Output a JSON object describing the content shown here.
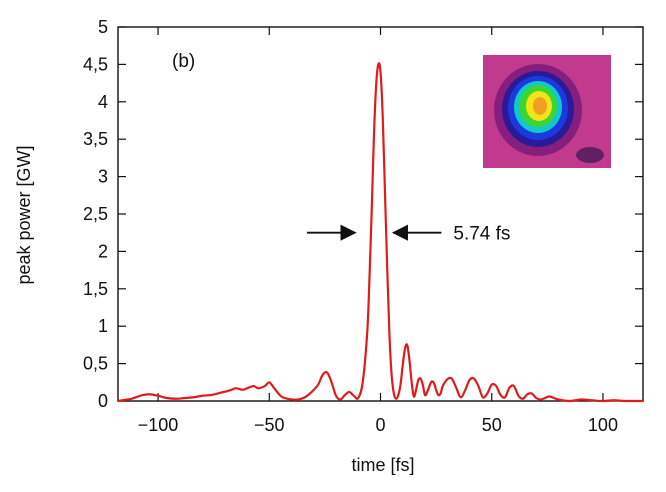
{
  "chart_data": {
    "type": "line",
    "panel_label": "(b)",
    "xlabel": "time [fs]",
    "ylabel": "peak power [GW]",
    "xlim": [
      -118,
      118
    ],
    "ylim": [
      0,
      5
    ],
    "xticks": [
      -100,
      -50,
      0,
      50,
      100
    ],
    "xtick_labels": [
      "−100",
      "−50",
      "0",
      "50",
      "100"
    ],
    "yticks": [
      0,
      0.5,
      1,
      1.5,
      2,
      2.5,
      3,
      3.5,
      4,
      4.5,
      5
    ],
    "ytick_labels": [
      "0",
      "0,5",
      "1",
      "1,5",
      "2",
      "2,5",
      "3",
      "3,5",
      "4",
      "4,5",
      "5"
    ],
    "grid": false,
    "series": [
      {
        "color": "#e01b1b",
        "x": [
          -118,
          -112,
          -108,
          -104,
          -100,
          -96,
          -92,
          -88,
          -84,
          -80,
          -76,
          -72,
          -68,
          -65,
          -62,
          -60,
          -57,
          -55,
          -52,
          -50,
          -48,
          -45,
          -43,
          -40,
          -37,
          -34,
          -31,
          -28,
          -26,
          -24,
          -22,
          -20,
          -18,
          -16,
          -14,
          -12,
          -10,
          -8,
          -6,
          -5,
          -4,
          -3,
          -2,
          -1,
          0,
          1,
          2,
          3,
          4,
          5,
          6,
          7,
          8,
          9,
          10,
          11,
          12,
          13,
          14,
          15,
          16,
          17,
          18,
          19,
          20,
          21,
          22,
          23,
          24,
          25,
          26,
          27,
          28,
          30,
          32,
          34,
          36,
          38,
          40,
          42,
          44,
          46,
          48,
          50,
          52,
          54,
          56,
          58,
          60,
          62,
          64,
          66,
          68,
          70,
          72,
          74,
          76,
          80,
          85,
          90,
          95,
          100,
          105,
          110,
          118
        ],
        "y": [
          0.0,
          0.03,
          0.07,
          0.09,
          0.07,
          0.04,
          0.03,
          0.04,
          0.05,
          0.07,
          0.08,
          0.11,
          0.14,
          0.17,
          0.15,
          0.17,
          0.2,
          0.17,
          0.2,
          0.25,
          0.18,
          0.07,
          0.04,
          0.02,
          0.02,
          0.05,
          0.12,
          0.22,
          0.35,
          0.38,
          0.25,
          0.07,
          0.02,
          0.08,
          0.12,
          0.07,
          0.04,
          0.25,
          0.9,
          1.6,
          2.5,
          3.5,
          4.2,
          4.5,
          4.4,
          3.8,
          2.8,
          1.8,
          0.9,
          0.35,
          0.1,
          0.03,
          0.08,
          0.22,
          0.48,
          0.7,
          0.75,
          0.55,
          0.25,
          0.06,
          0.15,
          0.28,
          0.3,
          0.22,
          0.08,
          0.12,
          0.2,
          0.26,
          0.24,
          0.15,
          0.08,
          0.1,
          0.2,
          0.29,
          0.3,
          0.18,
          0.05,
          0.14,
          0.28,
          0.3,
          0.2,
          0.05,
          0.1,
          0.22,
          0.2,
          0.08,
          0.05,
          0.18,
          0.2,
          0.07,
          0.03,
          0.09,
          0.1,
          0.04,
          0.02,
          0.04,
          0.06,
          0.02,
          0.0,
          0.02,
          0.01,
          0.0,
          0.01,
          0.0,
          0.0
        ]
      }
    ],
    "annotations": [
      {
        "text": "5.74 fs",
        "type": "fwhm-arrows",
        "y": 2.25,
        "x_left": -16,
        "x_right": 4
      }
    ],
    "inset": {
      "kind": "beam-profile-heatmap",
      "description_colors": [
        "#d23b97",
        "#6a1a6b",
        "#1d2bd6",
        "#0fd4c8",
        "#22d640",
        "#f2f21a",
        "#f28a1a"
      ]
    }
  }
}
